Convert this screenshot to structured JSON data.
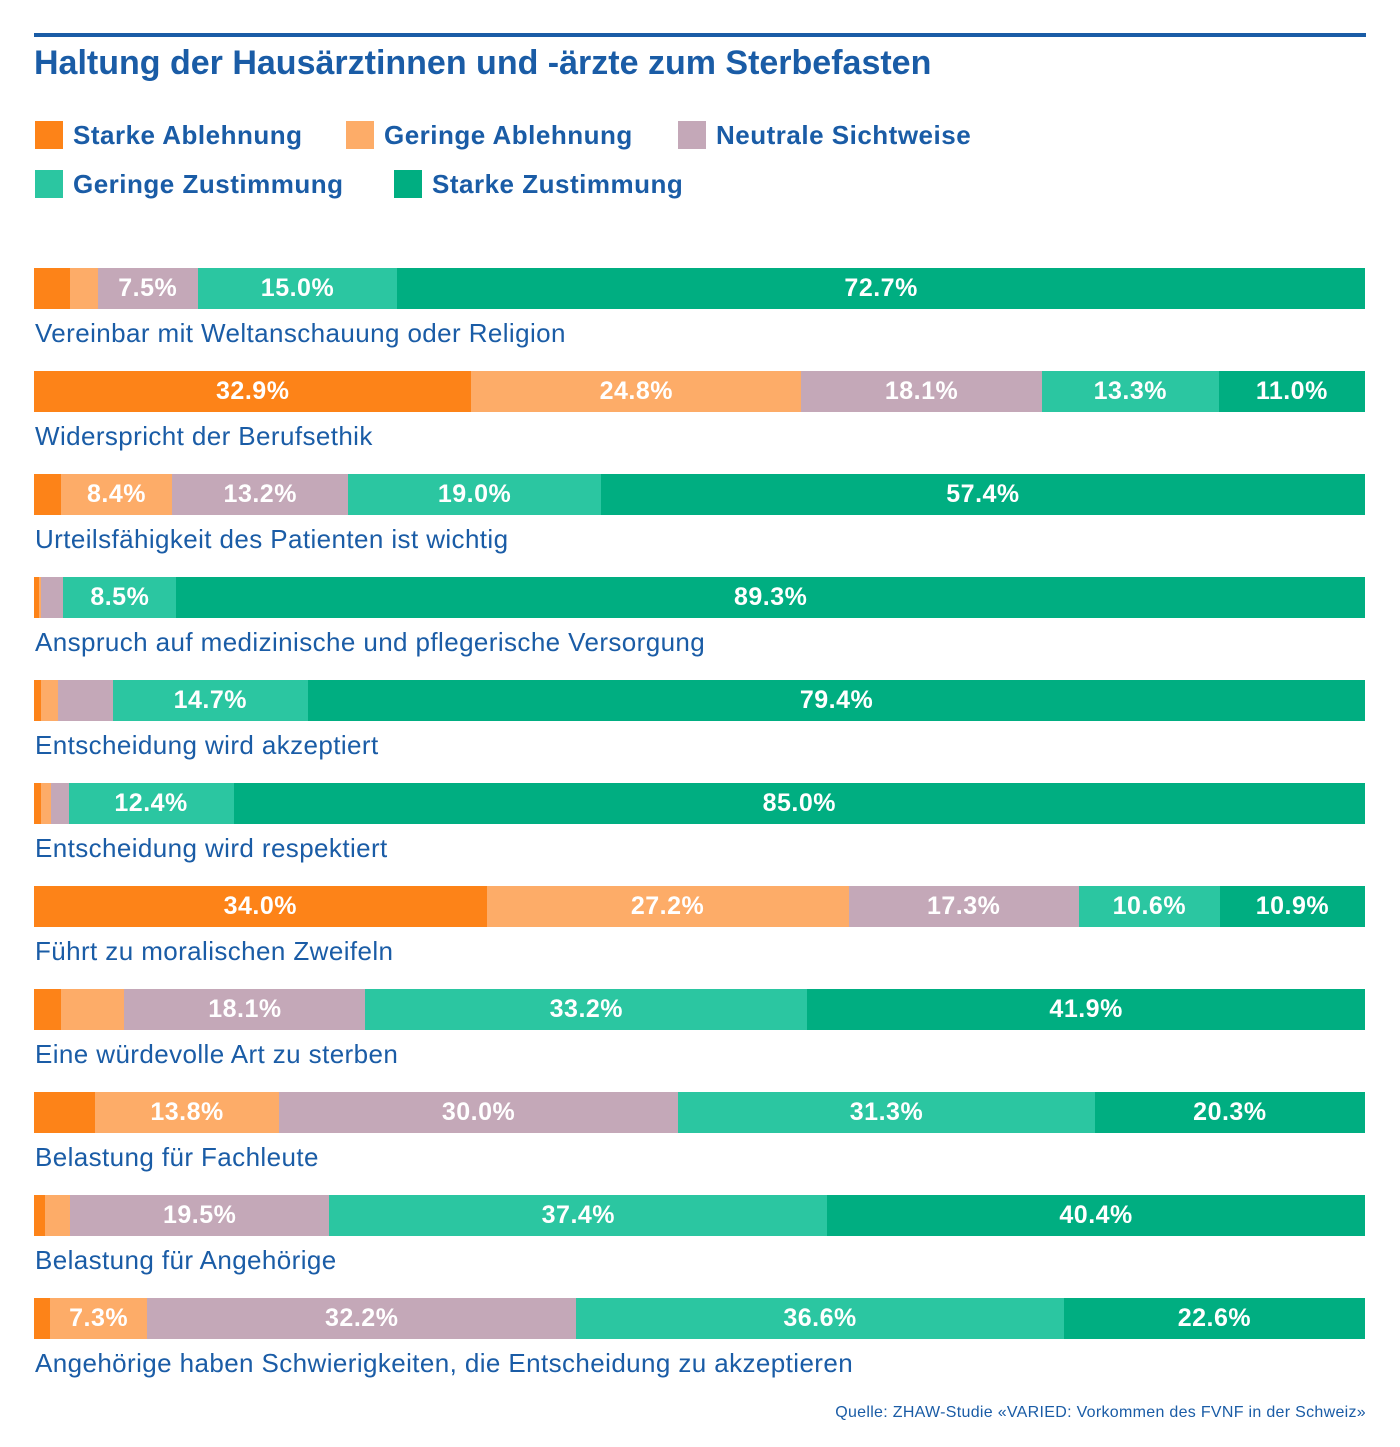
{
  "title": "Haltung der Hausärztinnen und -ärzte zum Sterbefasten",
  "source": "Quelle: ZHAW-Studie «VARIED: Vorkommen des FVNF in der Schweiz»",
  "colors": {
    "Starke Ablehnung": "#fd8318",
    "Geringe Ablehnung": "#fdac68",
    "Neutrale Sichtweise": "#c4a8b8",
    "Geringe Zustimmung": "#2bc6a1",
    "Starke Zustimmung": "#00ae81",
    "text": "#1a5ca6"
  },
  "chart_data": {
    "type": "bar",
    "stacked": true,
    "orientation": "horizontal",
    "unit": "%",
    "title": "Haltung der Hausärztinnen und -ärzte zum Sterbefasten",
    "legend": [
      "Starke Ablehnung",
      "Geringe Ablehnung",
      "Neutrale Sichtweise",
      "Geringe Zustimmung",
      "Starke Zustimmung"
    ],
    "legend_position": "top-left",
    "categories": [
      "Vereinbar mit Weltanschauung oder Religion",
      "Widerspricht der Berufsethik",
      "Urteilsfähigkeit des Patienten ist wichtig",
      "Anspruch auf medizinische und pflegerische Versorgung",
      "Entscheidung wird akzeptiert",
      "Entscheidung wird respektiert",
      "Führt zu moralischen Zweifeln",
      "Eine würdevolle Art zu sterben",
      "Belastung für Fachleute",
      "Belastung für Angehörige",
      "Angehörige haben Schwierigkeiten, die Entscheidung zu akzeptieren"
    ],
    "series": [
      {
        "name": "Starke Ablehnung",
        "values": [
          2.7,
          32.9,
          2.0,
          0.4,
          0.5,
          0.5,
          34.0,
          2.0,
          4.6,
          0.8,
          1.2
        ]
      },
      {
        "name": "Geringe Ablehnung",
        "values": [
          2.1,
          24.8,
          8.4,
          0.1,
          1.3,
          0.8,
          27.2,
          4.8,
          13.8,
          1.9,
          7.3
        ]
      },
      {
        "name": "Neutrale Sichtweise",
        "values": [
          7.5,
          18.1,
          13.2,
          1.7,
          4.1,
          1.3,
          17.3,
          18.1,
          30.0,
          19.5,
          32.2
        ]
      },
      {
        "name": "Geringe Zustimmung",
        "values": [
          15.0,
          13.3,
          19.0,
          8.5,
          14.7,
          12.4,
          10.6,
          33.2,
          31.3,
          37.4,
          36.6
        ]
      },
      {
        "name": "Starke Zustimmung",
        "values": [
          72.7,
          11.0,
          57.4,
          89.3,
          79.4,
          85.0,
          10.9,
          41.9,
          20.3,
          40.4,
          22.6
        ]
      }
    ],
    "data_labels": [
      [
        "",
        "",
        "7.5%",
        "15.0%",
        "72.7%"
      ],
      [
        "32.9%",
        "24.8%",
        "18.1%",
        "13.3%",
        "11.0%"
      ],
      [
        "",
        "8.4%",
        "13.2%",
        "19.0%",
        "57.4%"
      ],
      [
        "",
        "",
        "",
        "8.5%",
        "89.3%"
      ],
      [
        "",
        "",
        "",
        "14.7%",
        "79.4%"
      ],
      [
        "",
        "",
        "",
        "12.4%",
        "85.0%"
      ],
      [
        "34.0%",
        "27.2%",
        "17.3%",
        "10.6%",
        "10.9%"
      ],
      [
        "",
        "",
        "18.1%",
        "33.2%",
        "41.9%"
      ],
      [
        "",
        "13.8%",
        "30.0%",
        "31.3%",
        "20.3%"
      ],
      [
        "",
        "",
        "19.5%",
        "37.4%",
        "40.4%"
      ],
      [
        "",
        "7.3%",
        "32.2%",
        "36.6%",
        "22.6%"
      ]
    ]
  }
}
